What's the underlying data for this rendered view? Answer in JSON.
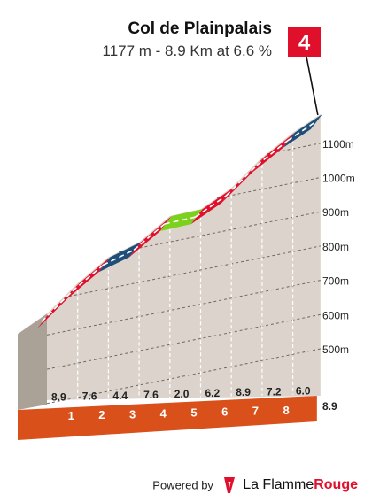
{
  "header": {
    "title": "Col de Plainpalais",
    "subtitle": "1177 m - 8.9 Km at 6.6 %"
  },
  "summit_flag": {
    "label": "4",
    "color": "#e0102d"
  },
  "footer": {
    "powered_by": "Powered by",
    "brand_main": "La Flamme",
    "brand_accent": "Rouge"
  },
  "colors": {
    "red": "#e0102d",
    "blue": "#1e4f7a",
    "green": "#7cd11c",
    "fill": "#dcd4cc",
    "base_orange": "#d9501a",
    "wall": "#aaa197"
  },
  "chart_data": {
    "type": "area",
    "title": "Col de Plainpalais",
    "subtitle": "1177 m - 8.9 Km at 6.6 %",
    "xlabel": "",
    "ylabel": "",
    "yunit": "m",
    "y_ticks": [
      500,
      600,
      700,
      800,
      900,
      1000,
      1100
    ],
    "y_tick_labels": [
      "500m",
      "600m",
      "700m",
      "800m",
      "900m",
      "1000m",
      "1100m"
    ],
    "xlim": [
      0,
      8.9
    ],
    "ylim": [
      400,
      1177
    ],
    "km_markers": [
      "1",
      "2",
      "3",
      "4",
      "5",
      "6",
      "7",
      "8"
    ],
    "total_distance_label": "8.9",
    "segments": [
      {
        "from_km": 0,
        "to_km": 1,
        "gradient": 8.9,
        "label": "8.9",
        "color": "red"
      },
      {
        "from_km": 1,
        "to_km": 2,
        "gradient": 7.6,
        "label": "7.6",
        "color": "red"
      },
      {
        "from_km": 2,
        "to_km": 3,
        "gradient": 4.4,
        "label": "4.4",
        "color": "blue"
      },
      {
        "from_km": 3,
        "to_km": 4,
        "gradient": 7.6,
        "label": "7.6",
        "color": "red"
      },
      {
        "from_km": 4,
        "to_km": 5,
        "gradient": 2.0,
        "label": "2.0",
        "color": "green"
      },
      {
        "from_km": 5,
        "to_km": 6,
        "gradient": 6.2,
        "label": "6.2",
        "color": "red"
      },
      {
        "from_km": 6,
        "to_km": 7,
        "gradient": 8.9,
        "label": "8.9",
        "color": "red"
      },
      {
        "from_km": 7,
        "to_km": 8,
        "gradient": 7.2,
        "label": "7.2",
        "color": "red"
      },
      {
        "from_km": 8,
        "to_km": 8.9,
        "gradient": 6.0,
        "label": "6.0",
        "color": "blue"
      }
    ],
    "grid": true
  }
}
